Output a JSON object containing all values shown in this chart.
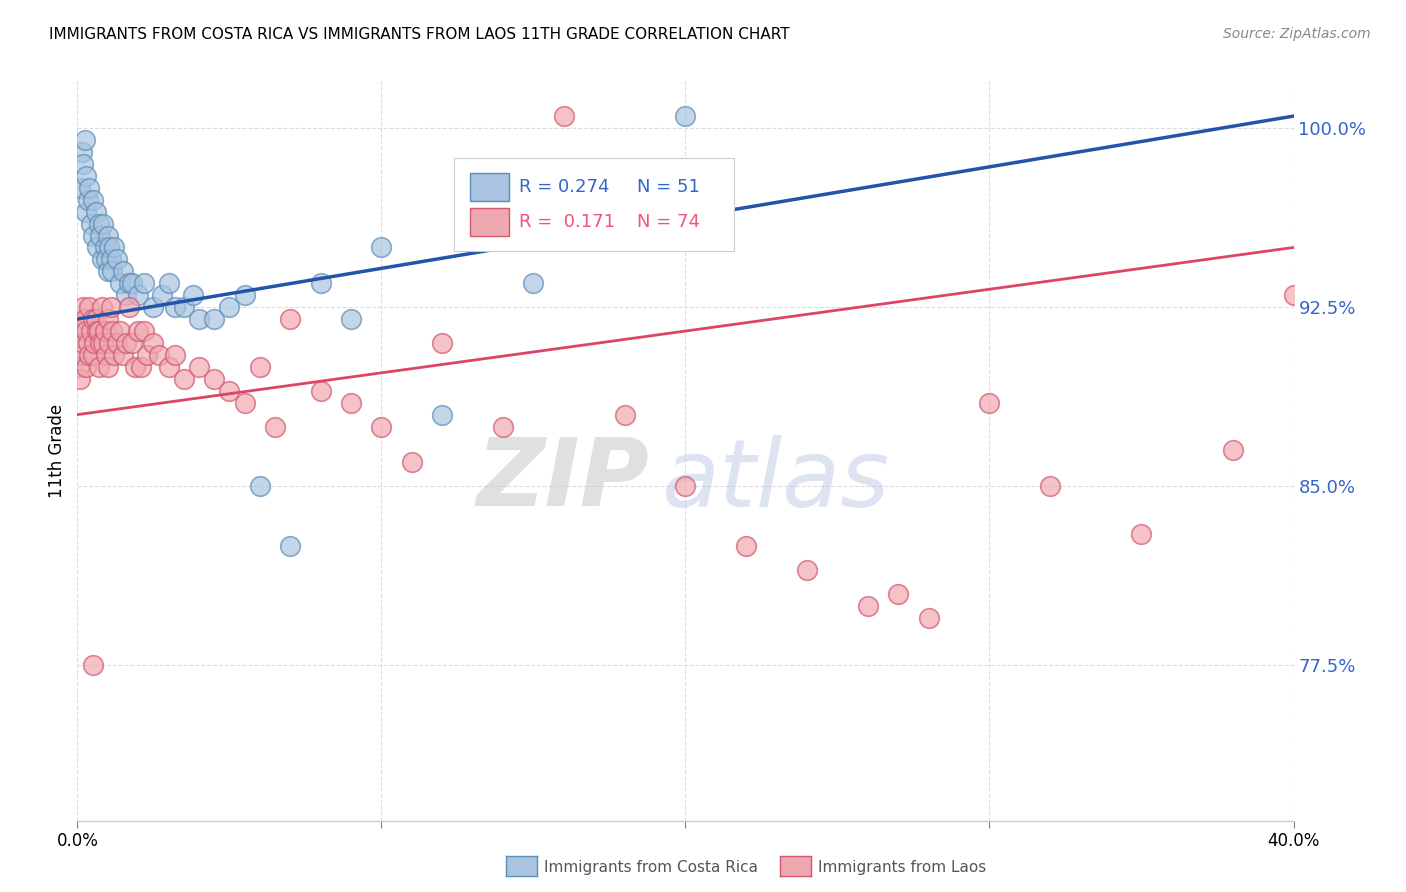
{
  "title": "IMMIGRANTS FROM COSTA RICA VS IMMIGRANTS FROM LAOS 11TH GRADE CORRELATION CHART",
  "source": "Source: ZipAtlas.com",
  "ylabel": "11th Grade",
  "xlim": [
    0.0,
    40.0
  ],
  "ylim": [
    71.0,
    102.0
  ],
  "yticks": [
    77.5,
    85.0,
    92.5,
    100.0
  ],
  "ytick_labels": [
    "77.5%",
    "85.0%",
    "92.5%",
    "100.0%"
  ],
  "xticks": [
    0,
    10,
    20,
    30,
    40
  ],
  "color_blue_fill": "#A8C4E0",
  "color_blue_edge": "#5B8DB8",
  "color_pink_fill": "#F0A8B0",
  "color_pink_edge": "#D05870",
  "color_blue_line": "#2255AA",
  "color_pink_line": "#DD4466",
  "color_blue_text": "#3366CC",
  "color_pink_text": "#EE5577",
  "legend_blue_r": "R = 0.274",
  "legend_blue_n": "N = 51",
  "legend_pink_r": "R =  0.171",
  "legend_pink_n": "N = 74",
  "watermark_zip": "ZIP",
  "watermark_atlas": "atlas",
  "blue_x": [
    0.1,
    0.15,
    0.2,
    0.25,
    0.3,
    0.3,
    0.35,
    0.4,
    0.45,
    0.5,
    0.5,
    0.6,
    0.65,
    0.7,
    0.75,
    0.8,
    0.85,
    0.9,
    0.95,
    1.0,
    1.0,
    1.05,
    1.1,
    1.15,
    1.2,
    1.3,
    1.4,
    1.5,
    1.6,
    1.7,
    1.8,
    2.0,
    2.2,
    2.5,
    2.8,
    3.0,
    3.2,
    3.5,
    3.8,
    4.0,
    4.5,
    5.0,
    5.5,
    6.0,
    7.0,
    8.0,
    9.0,
    10.0,
    12.0,
    15.0,
    20.0
  ],
  "blue_y": [
    97.5,
    99.0,
    98.5,
    99.5,
    98.0,
    96.5,
    97.0,
    97.5,
    96.0,
    97.0,
    95.5,
    96.5,
    95.0,
    96.0,
    95.5,
    94.5,
    96.0,
    95.0,
    94.5,
    95.5,
    94.0,
    95.0,
    94.5,
    94.0,
    95.0,
    94.5,
    93.5,
    94.0,
    93.0,
    93.5,
    93.5,
    93.0,
    93.5,
    92.5,
    93.0,
    93.5,
    92.5,
    92.5,
    93.0,
    92.0,
    92.0,
    92.5,
    93.0,
    85.0,
    82.5,
    93.5,
    92.0,
    95.0,
    88.0,
    93.5,
    100.5
  ],
  "pink_x": [
    0.05,
    0.1,
    0.1,
    0.15,
    0.2,
    0.2,
    0.25,
    0.3,
    0.3,
    0.35,
    0.4,
    0.4,
    0.45,
    0.5,
    0.5,
    0.55,
    0.6,
    0.65,
    0.7,
    0.7,
    0.75,
    0.8,
    0.85,
    0.9,
    0.95,
    1.0,
    1.0,
    1.05,
    1.1,
    1.15,
    1.2,
    1.3,
    1.4,
    1.5,
    1.6,
    1.7,
    1.8,
    1.9,
    2.0,
    2.1,
    2.2,
    2.3,
    2.5,
    2.7,
    3.0,
    3.2,
    3.5,
    4.0,
    4.5,
    5.0,
    5.5,
    6.0,
    6.5,
    7.0,
    8.0,
    9.0,
    10.0,
    11.0,
    12.0,
    14.0,
    16.0,
    18.0,
    20.0,
    22.0,
    24.0,
    26.0,
    27.0,
    28.0,
    30.0,
    32.0,
    35.0,
    38.0,
    40.0,
    0.5
  ],
  "pink_y": [
    90.0,
    91.5,
    89.5,
    90.5,
    92.5,
    91.0,
    92.0,
    91.5,
    90.0,
    91.0,
    92.5,
    90.5,
    91.5,
    92.0,
    90.5,
    91.0,
    92.0,
    91.5,
    90.0,
    91.5,
    91.0,
    92.5,
    91.0,
    91.5,
    90.5,
    92.0,
    90.0,
    91.0,
    92.5,
    91.5,
    90.5,
    91.0,
    91.5,
    90.5,
    91.0,
    92.5,
    91.0,
    90.0,
    91.5,
    90.0,
    91.5,
    90.5,
    91.0,
    90.5,
    90.0,
    90.5,
    89.5,
    90.0,
    89.5,
    89.0,
    88.5,
    90.0,
    87.5,
    92.0,
    89.0,
    88.5,
    87.5,
    86.0,
    91.0,
    87.5,
    100.5,
    88.0,
    85.0,
    82.5,
    81.5,
    80.0,
    80.5,
    79.5,
    88.5,
    85.0,
    83.0,
    86.5,
    93.0,
    77.5
  ]
}
